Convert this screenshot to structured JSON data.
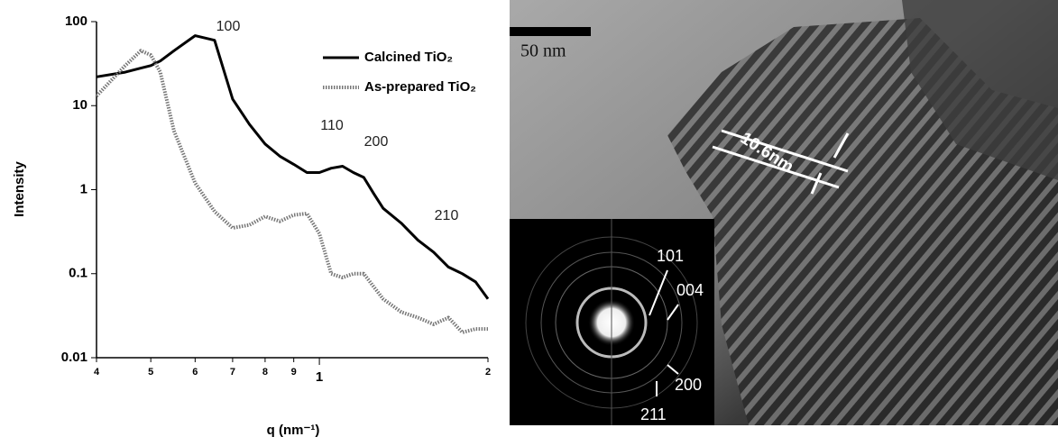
{
  "chart_data": {
    "type": "line",
    "x_label": "q (nm⁻¹)",
    "y_label": "Intensity",
    "x": [
      0.04,
      0.045,
      0.048,
      0.05,
      0.052,
      0.055,
      0.06,
      0.065,
      0.07,
      0.075,
      0.08,
      0.085,
      0.09,
      0.095,
      0.1,
      0.105,
      0.11,
      0.115,
      0.12,
      0.125,
      0.13,
      0.14,
      0.15,
      0.16,
      0.17,
      0.18,
      0.19,
      0.2
    ],
    "series": [
      {
        "name": "Calcined TiO₂",
        "color": "#000000",
        "dash": "solid",
        "values": [
          22,
          25,
          28,
          30,
          34,
          45,
          68,
          60,
          12,
          6,
          3.5,
          2.5,
          2.0,
          1.6,
          1.6,
          1.8,
          1.9,
          1.6,
          1.4,
          0.9,
          0.6,
          0.4,
          0.25,
          0.18,
          0.12,
          0.1,
          0.08,
          0.05
        ]
      },
      {
        "name": "As-prepared TiO₂",
        "color": "#777777",
        "dash": "dotted",
        "values": [
          13,
          30,
          45,
          40,
          25,
          5,
          1.2,
          0.55,
          0.35,
          0.38,
          0.48,
          0.42,
          0.5,
          0.52,
          0.3,
          0.1,
          0.09,
          0.1,
          0.1,
          0.07,
          0.05,
          0.035,
          0.03,
          0.025,
          0.03,
          0.02,
          0.022,
          0.022
        ]
      }
    ],
    "xlim": [
      0.04,
      0.2
    ],
    "ylim": [
      0.01,
      100
    ],
    "x_log": true,
    "y_log": true,
    "xticks": [
      {
        "value": 0.04,
        "label": "4"
      },
      {
        "value": 0.05,
        "label": "5"
      },
      {
        "value": 0.06,
        "label": "6"
      },
      {
        "value": 0.07,
        "label": "7"
      },
      {
        "value": 0.08,
        "label": "8"
      },
      {
        "value": 0.09,
        "label": "9"
      },
      {
        "value": 0.1,
        "label": "1"
      },
      {
        "value": 0.2,
        "label": "2"
      }
    ],
    "yticks": [
      0.01,
      0.1,
      1,
      10,
      100
    ],
    "annotations": [
      "100",
      "110",
      "200",
      "210"
    ],
    "legend": "upper right",
    "grid": false
  },
  "tem_image": {
    "scale_bar": "50 nm",
    "spacing": "10.6nm",
    "saed_labels": [
      "101",
      "004",
      "200",
      "211"
    ]
  }
}
